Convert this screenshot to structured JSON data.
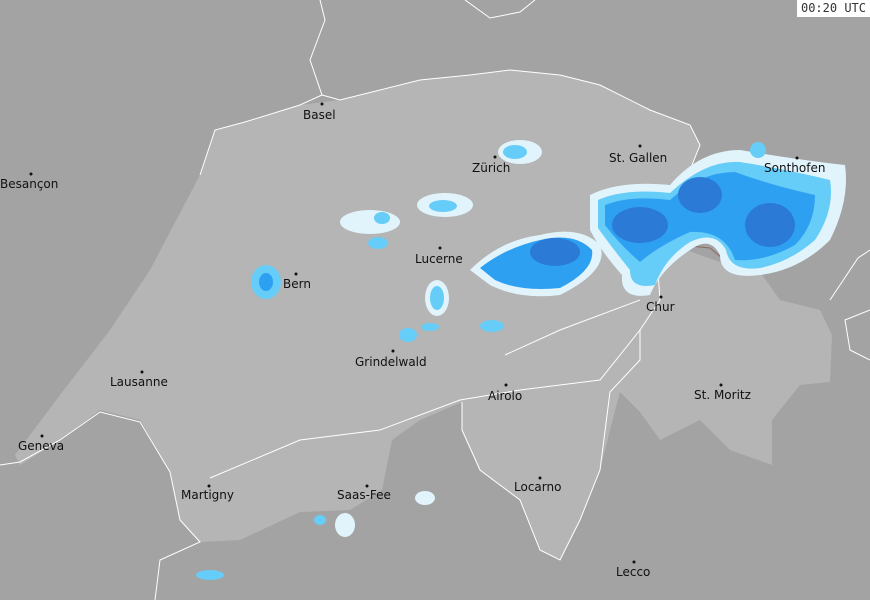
{
  "timestamp": "00:20 UTC",
  "colors": {
    "background": "#a3a3a3",
    "country": "#b5b5b5",
    "border": "#ffffff",
    "rain_light": "#e2f4fb",
    "rain_low": "#66ccf8",
    "rain_mid": "#2ea0f2",
    "rain_high": "#2a7ad6"
  },
  "cities": [
    {
      "name": "Basel"
    },
    {
      "name": "Besançon"
    },
    {
      "name": "Zürich"
    },
    {
      "name": "St. Gallen"
    },
    {
      "name": "Sonthofen"
    },
    {
      "name": "Lucerne"
    },
    {
      "name": "Bern"
    },
    {
      "name": "Chur"
    },
    {
      "name": "Grindelwald"
    },
    {
      "name": "Lausanne"
    },
    {
      "name": "Airolo"
    },
    {
      "name": "St. Moritz"
    },
    {
      "name": "Geneva"
    },
    {
      "name": "Martigny"
    },
    {
      "name": "Saas-Fee"
    },
    {
      "name": "Locarno"
    },
    {
      "name": "Lecco"
    }
  ]
}
